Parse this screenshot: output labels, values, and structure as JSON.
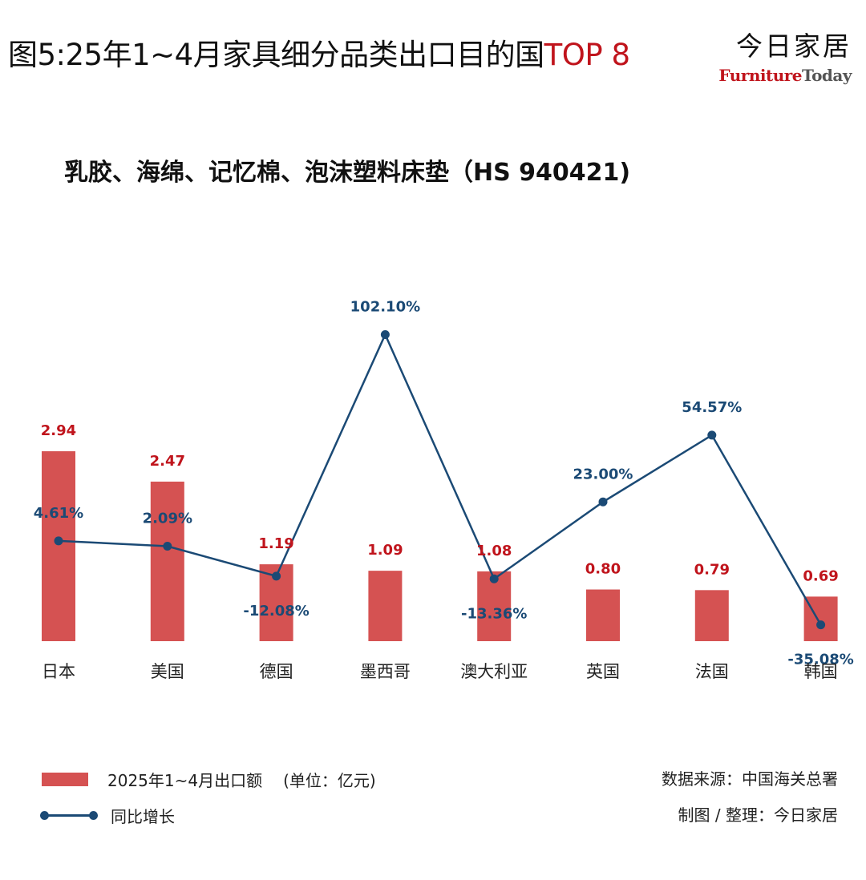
{
  "header": {
    "title_main": "图5:25年1~4月家具细分品类出口目的国",
    "title_accent": "TOP 8",
    "brand_cn": "今日家居",
    "brand_en_a": "Furniture",
    "brand_en_b": "Today"
  },
  "chart_data": {
    "type": "bar",
    "title": "乳胶、海绵、记忆棉、泡沫塑料床垫（HS 940421)",
    "categories": [
      "日本",
      "美国",
      "德国",
      "墨西哥",
      "澳大利亚",
      "英国",
      "法国",
      "韩国"
    ],
    "series": [
      {
        "name": "2025年1~4月出口额",
        "type": "bar",
        "unit": "亿元",
        "values": [
          2.94,
          2.47,
          1.19,
          1.09,
          1.08,
          0.8,
          0.79,
          0.69
        ],
        "labels": [
          "2.94",
          "2.47",
          "1.19",
          "1.09",
          "1.08",
          "0.80",
          "0.79",
          "0.69"
        ],
        "color": "#d55252"
      },
      {
        "name": "同比增长",
        "type": "line",
        "values": [
          4.61,
          2.09,
          -12.08,
          102.1,
          -13.36,
          23.0,
          54.57,
          -35.08
        ],
        "labels": [
          "4.61%",
          "2.09%",
          "-12.08%",
          "102.10%",
          "-13.36%",
          "23.00%",
          "54.57%",
          "-35.08%"
        ],
        "color": "#1b4a75"
      }
    ],
    "bar_label_color": "#c0141c",
    "grid": false,
    "legend_position": "bottom-left"
  },
  "legend": {
    "bar_label": "2025年1~4月出口额",
    "unit_label": "(单位：亿元)",
    "line_label": "同比增长"
  },
  "source": {
    "data_source": "数据来源：中国海关总署",
    "made_by": "制图 / 整理：今日家居"
  }
}
